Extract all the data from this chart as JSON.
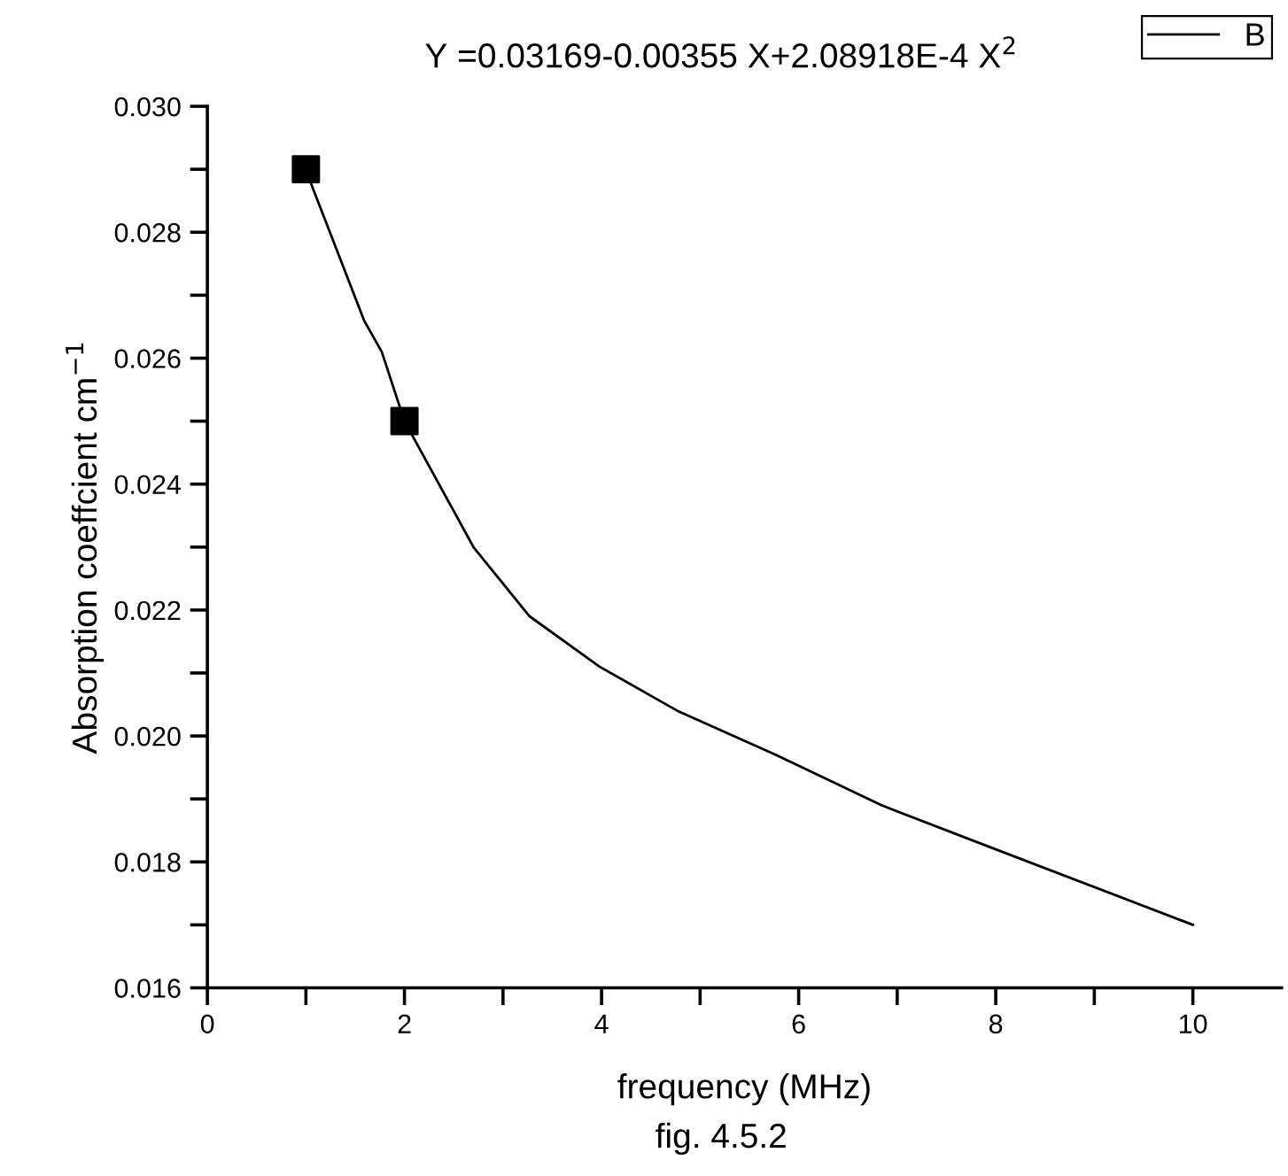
{
  "chart_data": {
    "type": "line",
    "xlabel": "frequency (MHz)",
    "ylabel": "Absorption coeffcient cm$^{−1}$",
    "annotations": [
      "Y =0.03169-0.00355 X+2.08918E-4 X$^{2}$",
      "fig. 4.5.2"
    ],
    "series": [
      {
        "type": "scatter",
        "color": "#000000",
        "marker": "square",
        "x": [
          1,
          2
        ],
        "values": [
          0.029,
          0.025
        ]
      },
      {
        "name": "B",
        "color": "#000000",
        "marker": "none",
        "line_style": "solid",
        "x": [
          1,
          1.07,
          1.59,
          1.77,
          2.0,
          2.7,
          3.27,
          3.98,
          4.77,
          5.77,
          6.84,
          8.0,
          10
        ],
        "values": [
          0.029,
          0.0287,
          0.0266,
          0.0261,
          0.025,
          0.023,
          0.0219,
          0.0211,
          0.0204,
          0.0197,
          0.0189,
          0.0182,
          0.017
        ]
      }
    ],
    "xlim": [
      0,
      10.9
    ],
    "ylim": [
      0.016,
      0.03
    ],
    "xticks": [
      0,
      {
        "value": 1,
        "label": null
      },
      2,
      {
        "value": 3,
        "label": null
      },
      4,
      {
        "value": 5,
        "label": null
      },
      6,
      {
        "value": 7,
        "label": null
      },
      8,
      {
        "value": 9,
        "label": null
      },
      10
    ],
    "yticks": [
      {
        "value": 0.016,
        "label": "0.016"
      },
      {
        "value": 0.017,
        "label": null
      },
      {
        "value": 0.018,
        "label": "0.018"
      },
      {
        "value": 0.019,
        "label": null
      },
      {
        "value": 0.02,
        "label": "0.020"
      },
      {
        "value": 0.021,
        "label": null
      },
      {
        "value": 0.022,
        "label": "0.022"
      },
      {
        "value": 0.023,
        "label": null
      },
      {
        "value": 0.024,
        "label": "0.024"
      },
      {
        "value": 0.025,
        "label": null
      },
      {
        "value": 0.026,
        "label": "0.026"
      },
      {
        "value": 0.027,
        "label": null
      },
      {
        "value": 0.028,
        "label": "0.028"
      },
      {
        "value": 0.029,
        "label": null
      },
      {
        "value": 0.03,
        "label": "0.030"
      }
    ],
    "grid": false,
    "legend": "top right"
  }
}
